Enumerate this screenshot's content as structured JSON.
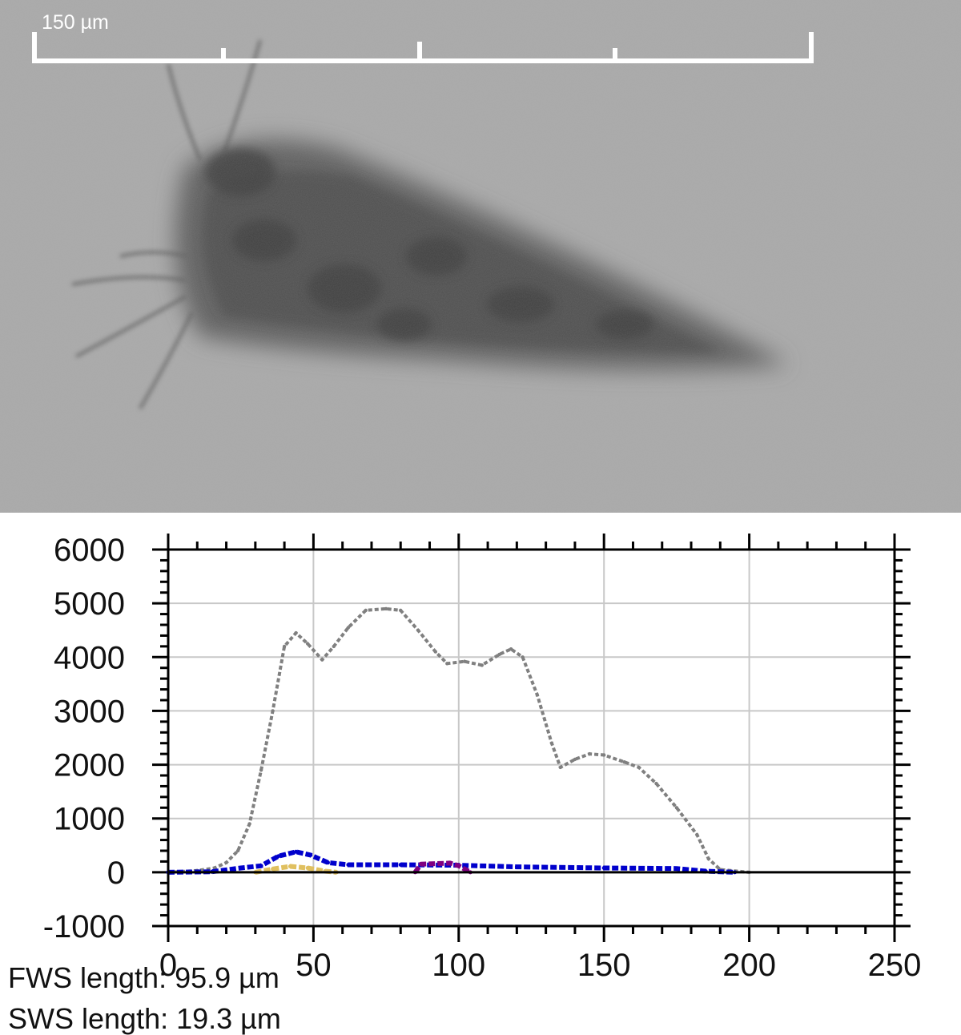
{
  "image": {
    "scale_bar_label": "150 µm"
  },
  "info": {
    "fws": "FWS length: 95.9 µm",
    "sws": "SWS length: 19.3 µm"
  },
  "chart_data": {
    "type": "line",
    "title": "",
    "xlabel": "",
    "ylabel": "",
    "xlim": [
      0,
      250
    ],
    "ylim": [
      -1000,
      6000
    ],
    "x_ticks": [
      0,
      50,
      100,
      150,
      200,
      250
    ],
    "y_ticks": [
      6000,
      5000,
      4000,
      3000,
      2000,
      1000,
      0,
      -1000
    ],
    "grid": true,
    "legend": "none",
    "series": [
      {
        "color": "#808080",
        "points": [
          [
            0,
            0
          ],
          [
            10,
            30
          ],
          [
            16,
            80
          ],
          [
            20,
            180
          ],
          [
            24,
            400
          ],
          [
            28,
            900
          ],
          [
            32,
            1900
          ],
          [
            36,
            3000
          ],
          [
            40,
            4200
          ],
          [
            44,
            4450
          ],
          [
            48,
            4250
          ],
          [
            53,
            3950
          ],
          [
            57,
            4200
          ],
          [
            62,
            4550
          ],
          [
            68,
            4870
          ],
          [
            75,
            4900
          ],
          [
            80,
            4870
          ],
          [
            86,
            4500
          ],
          [
            92,
            4100
          ],
          [
            96,
            3880
          ],
          [
            102,
            3920
          ],
          [
            108,
            3850
          ],
          [
            114,
            4050
          ],
          [
            118,
            4150
          ],
          [
            122,
            4000
          ],
          [
            127,
            3300
          ],
          [
            132,
            2400
          ],
          [
            135,
            1950
          ],
          [
            140,
            2100
          ],
          [
            145,
            2200
          ],
          [
            150,
            2180
          ],
          [
            157,
            2050
          ],
          [
            162,
            1950
          ],
          [
            168,
            1650
          ],
          [
            175,
            1200
          ],
          [
            182,
            700
          ],
          [
            186,
            250
          ],
          [
            190,
            50
          ],
          [
            200,
            0
          ]
        ]
      },
      {
        "color": "#0000cc",
        "points": [
          [
            0,
            0
          ],
          [
            15,
            10
          ],
          [
            25,
            80
          ],
          [
            32,
            120
          ],
          [
            38,
            300
          ],
          [
            44,
            380
          ],
          [
            49,
            320
          ],
          [
            55,
            180
          ],
          [
            62,
            140
          ],
          [
            80,
            140
          ],
          [
            100,
            130
          ],
          [
            120,
            100
          ],
          [
            150,
            80
          ],
          [
            175,
            70
          ],
          [
            185,
            20
          ],
          [
            195,
            0
          ]
        ]
      },
      {
        "color": "#800080",
        "points": [
          [
            85,
            0
          ],
          [
            87,
            150
          ],
          [
            97,
            170
          ],
          [
            100,
            120
          ],
          [
            103,
            30
          ],
          [
            104,
            0
          ]
        ]
      },
      {
        "color": "#e0c060",
        "points": [
          [
            30,
            0
          ],
          [
            36,
            60
          ],
          [
            42,
            110
          ],
          [
            48,
            80
          ],
          [
            54,
            20
          ],
          [
            58,
            0
          ]
        ]
      }
    ]
  }
}
